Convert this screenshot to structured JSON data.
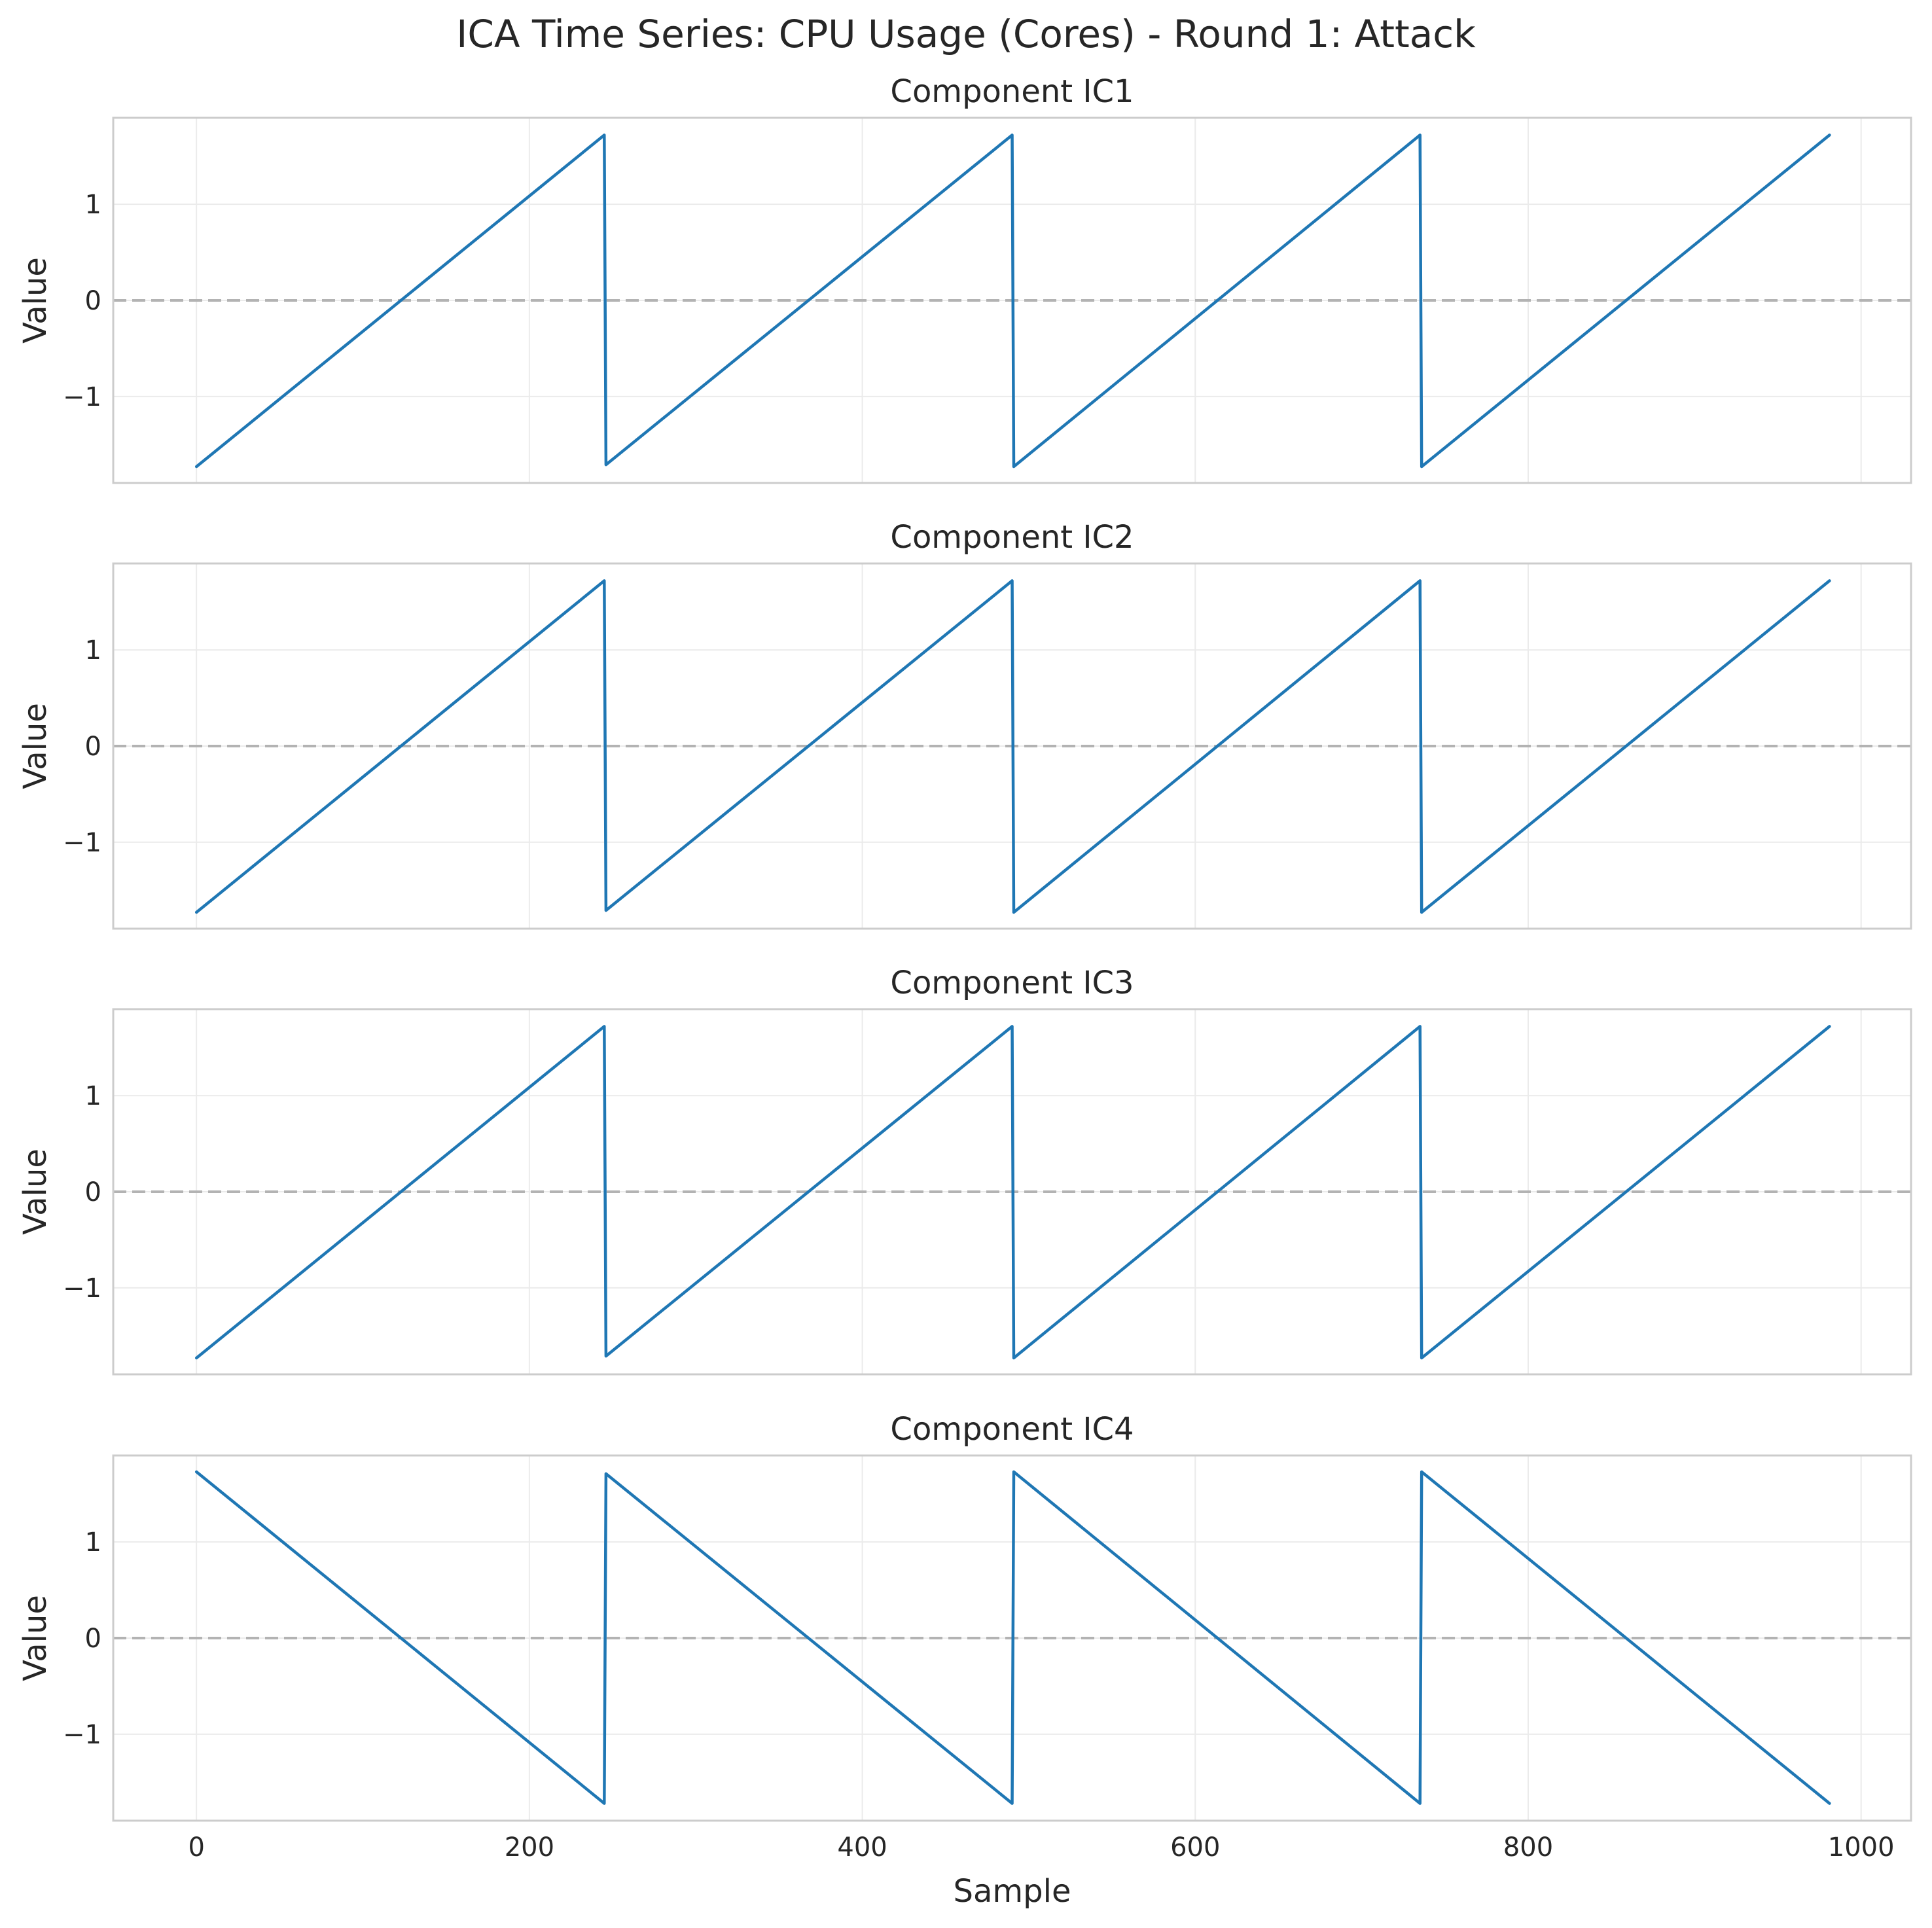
{
  "figure_title": "ICA Time Series: CPU Usage (Cores) - Round 1: Attack",
  "x_axis_label": "Sample",
  "colors": {
    "line": "#1f77b4",
    "zero_line": "#b3b3b3",
    "grid": "#ebebeb",
    "spine": "#cccccc",
    "text": "#262626"
  },
  "chart_data": [
    {
      "type": "line",
      "title": "Component IC1",
      "xlabel": "",
      "ylabel": "Value",
      "xlim": [
        -50,
        1030
      ],
      "ylim": [
        -1.9,
        1.9
      ],
      "xticks": [
        0,
        200,
        400,
        600,
        800,
        1000
      ],
      "yticks": [
        -1,
        0,
        1
      ],
      "ytick_labels": [
        "−1",
        "0",
        "1"
      ],
      "grid": true,
      "reference_line": {
        "y": 0,
        "style": "dashed"
      },
      "series": [
        {
          "x": [
            0,
            245,
            246,
            490,
            491,
            735,
            736,
            981
          ],
          "y": [
            -1.73,
            1.72,
            -1.71,
            1.72,
            -1.73,
            1.72,
            -1.73,
            1.72
          ]
        }
      ]
    },
    {
      "type": "line",
      "title": "Component IC2",
      "xlabel": "",
      "ylabel": "Value",
      "xlim": [
        -50,
        1030
      ],
      "ylim": [
        -1.9,
        1.9
      ],
      "xticks": [
        0,
        200,
        400,
        600,
        800,
        1000
      ],
      "yticks": [
        -1,
        0,
        1
      ],
      "ytick_labels": [
        "−1",
        "0",
        "1"
      ],
      "grid": true,
      "reference_line": {
        "y": 0,
        "style": "dashed"
      },
      "series": [
        {
          "x": [
            0,
            245,
            246,
            490,
            491,
            735,
            736,
            981
          ],
          "y": [
            -1.73,
            1.72,
            -1.71,
            1.72,
            -1.73,
            1.72,
            -1.73,
            1.72
          ]
        }
      ]
    },
    {
      "type": "line",
      "title": "Component IC3",
      "xlabel": "",
      "ylabel": "Value",
      "xlim": [
        -50,
        1030
      ],
      "ylim": [
        -1.9,
        1.9
      ],
      "xticks": [
        0,
        200,
        400,
        600,
        800,
        1000
      ],
      "yticks": [
        -1,
        0,
        1
      ],
      "ytick_labels": [
        "−1",
        "0",
        "1"
      ],
      "grid": true,
      "reference_line": {
        "y": 0,
        "style": "dashed"
      },
      "series": [
        {
          "x": [
            0,
            245,
            246,
            490,
            491,
            735,
            736,
            981
          ],
          "y": [
            -1.73,
            1.72,
            -1.71,
            1.72,
            -1.73,
            1.72,
            -1.73,
            1.72
          ]
        }
      ]
    },
    {
      "type": "line",
      "title": "Component IC4",
      "xlabel": "Sample",
      "ylabel": "Value",
      "xlim": [
        -50,
        1030
      ],
      "ylim": [
        -1.9,
        1.9
      ],
      "xticks": [
        0,
        200,
        400,
        600,
        800,
        1000
      ],
      "xtick_labels": [
        "0",
        "200",
        "400",
        "600",
        "800",
        "1000"
      ],
      "yticks": [
        -1,
        0,
        1
      ],
      "ytick_labels": [
        "−1",
        "0",
        "1"
      ],
      "grid": true,
      "reference_line": {
        "y": 0,
        "style": "dashed"
      },
      "series": [
        {
          "x": [
            0,
            245,
            246,
            490,
            491,
            735,
            736,
            981
          ],
          "y": [
            1.73,
            -1.72,
            1.71,
            -1.72,
            1.73,
            -1.72,
            1.73,
            -1.72
          ]
        }
      ]
    }
  ]
}
